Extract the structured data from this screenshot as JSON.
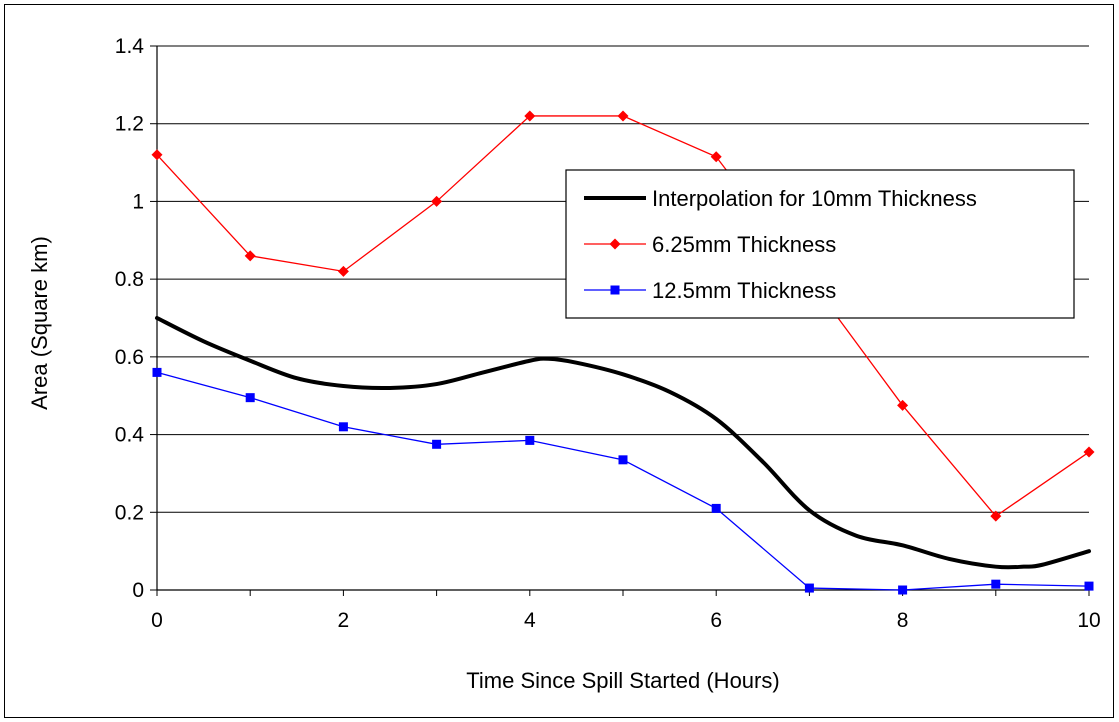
{
  "chart_data": {
    "type": "line",
    "title": "",
    "xlabel": "Time Since Spill Started (Hours)",
    "ylabel": "Area (Square km)",
    "xlim": [
      0,
      10
    ],
    "ylim": [
      0,
      1.4
    ],
    "xticks": [
      "0",
      "2",
      "4",
      "6",
      "8",
      "10"
    ],
    "yticks": [
      "0",
      "0.2",
      "0.4",
      "0.6",
      "0.8",
      "1",
      "1.2",
      "1.4"
    ],
    "grid": "horizontal",
    "legend_position": "top-right",
    "series": [
      {
        "name": "Interpolation for 10mm Thickness",
        "color": "#000000",
        "marker": "none",
        "smooth": true,
        "x": [
          0,
          0.5,
          1,
          1.5,
          2,
          2.5,
          3,
          3.5,
          4,
          4.2,
          4.5,
          5,
          5.5,
          6,
          6.5,
          7,
          7.5,
          8,
          8.5,
          9,
          9.3,
          9.5,
          10
        ],
        "y": [
          0.7,
          0.64,
          0.59,
          0.545,
          0.525,
          0.52,
          0.53,
          0.56,
          0.59,
          0.595,
          0.585,
          0.555,
          0.51,
          0.44,
          0.33,
          0.205,
          0.14,
          0.115,
          0.08,
          0.06,
          0.06,
          0.065,
          0.1
        ]
      },
      {
        "name": "6.25mm Thickness",
        "color": "#ff0000",
        "marker": "diamond",
        "smooth": false,
        "x": [
          0,
          1,
          2,
          3,
          4,
          5,
          6,
          7,
          8,
          9,
          10
        ],
        "y": [
          1.12,
          0.86,
          0.82,
          1.0,
          1.22,
          1.22,
          1.115,
          0.8,
          0.475,
          0.19,
          0.355
        ]
      },
      {
        "name": "12.5mm Thickness",
        "color": "#0000ff",
        "marker": "square",
        "smooth": false,
        "x": [
          0,
          1,
          2,
          3,
          4,
          5,
          6,
          7,
          8,
          9,
          10
        ],
        "y": [
          0.56,
          0.495,
          0.42,
          0.375,
          0.385,
          0.335,
          0.21,
          0.005,
          0.0,
          0.015,
          0.01
        ]
      }
    ]
  }
}
